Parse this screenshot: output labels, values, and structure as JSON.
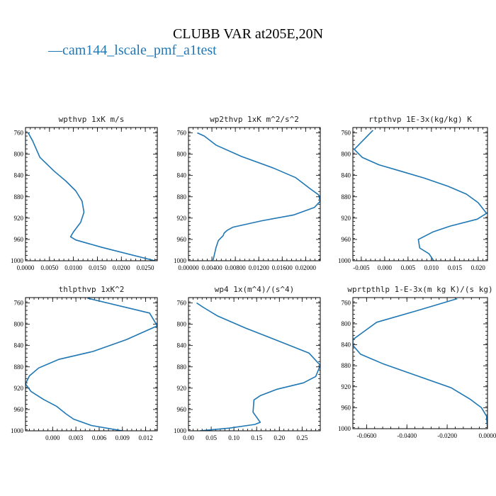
{
  "figure": {
    "title": "CLUBB VAR at205E,20N",
    "legend": {
      "symbol": "—",
      "label": "cam144_lscale_pmf_a1test",
      "color": "#1f77b4"
    }
  },
  "chart_data": [
    {
      "type": "line",
      "title": "wpthvp  1xK m/s",
      "xlim": [
        0.0,
        0.0275
      ],
      "xticks": [
        0.0,
        0.005,
        0.01,
        0.015,
        0.02,
        0.025
      ],
      "xtick_labels": [
        "0.0000",
        "0.0050",
        "0.0100",
        "0.0150",
        "0.0200",
        "0.0250"
      ],
      "ylim": [
        1000,
        750
      ],
      "yticks": [
        760,
        800,
        840,
        880,
        920,
        960,
        1000
      ],
      "series": [
        {
          "x": [
            0.0005,
            0.0015,
            0.003,
            0.006,
            0.0085,
            0.0105,
            0.0118,
            0.0122,
            0.0115,
            0.01,
            0.0094,
            0.0105,
            0.016,
            0.027
          ],
          "y": [
            759,
            775,
            806,
            832,
            851,
            869,
            888,
            909,
            928,
            946,
            955,
            961,
            975,
            1000
          ]
        }
      ]
    },
    {
      "type": "line",
      "title": "wp2thvp  1xK m^2/s^2",
      "xlim": [
        0.0,
        0.0225
      ],
      "xticks": [
        0.0,
        0.004,
        0.008,
        0.012,
        0.016,
        0.02
      ],
      "xtick_labels": [
        "0.00000",
        "0.00400",
        "0.00800",
        "0.01200",
        "0.01600",
        "0.02000"
      ],
      "ylim": [
        1000,
        750
      ],
      "yticks": [
        760,
        800,
        840,
        880,
        920,
        960,
        1000
      ],
      "series": [
        {
          "x": [
            0.0015,
            0.0027,
            0.0047,
            0.009,
            0.0145,
            0.0183,
            0.0208,
            0.0222,
            0.0225,
            0.0215,
            0.018,
            0.0125,
            0.0076,
            0.0066,
            0.0061,
            0.0059,
            0.0051,
            0.0047,
            0.0042
          ],
          "y": [
            760,
            766,
            783,
            804,
            826,
            844,
            865,
            876,
            888,
            900,
            914,
            925,
            937,
            943,
            948,
            953,
            962,
            975,
            999
          ]
        }
      ]
    },
    {
      "type": "line",
      "title": "rtpthvp  1E-3x(kg/kg) K",
      "xlim": [
        -0.0068,
        0.022
      ],
      "xticks": [
        -0.005,
        0.0,
        0.005,
        0.01,
        0.015,
        0.02
      ],
      "xtick_labels": [
        "-0.005",
        "0.000",
        "0.005",
        "0.010",
        "0.015",
        "0.020"
      ],
      "ylim": [
        1000,
        750
      ],
      "yticks": [
        760,
        800,
        840,
        880,
        920,
        960,
        1000
      ],
      "series": [
        {
          "x": [
            -0.0025,
            -0.0065,
            -0.0048,
            -0.0012,
            0.0035,
            0.0085,
            0.0135,
            0.0175,
            0.02,
            0.0218,
            0.0198,
            0.014,
            0.0103,
            0.0072,
            0.0075,
            0.0095,
            0.0105
          ],
          "y": [
            755,
            791,
            806,
            820,
            832,
            845,
            860,
            875,
            891,
            911,
            922,
            935,
            946,
            960,
            976,
            987,
            1000
          ]
        }
      ]
    },
    {
      "type": "line",
      "title": "thlpthvp  1xK^2",
      "xlim": [
        -0.0035,
        0.0135
      ],
      "xticks": [
        0.0,
        0.003,
        0.006,
        0.009,
        0.012
      ],
      "xtick_labels": [
        "0.000",
        "0.003",
        "0.006",
        "0.009",
        "0.012"
      ],
      "ylim": [
        1000,
        750
      ],
      "yticks": [
        760,
        800,
        840,
        880,
        920,
        960,
        1000
      ],
      "series": [
        {
          "x": [
            0.0045,
            0.0125,
            0.0135,
            0.0095,
            0.0052,
            0.0008,
            -0.0018,
            -0.003,
            -0.0035,
            -0.0028,
            -0.0012,
            0.0005,
            0.0017,
            0.0027,
            0.005,
            0.009
          ],
          "y": [
            751,
            779,
            803,
            829,
            851,
            866,
            882,
            897,
            912,
            926,
            941,
            954,
            968,
            978,
            990,
            1000
          ]
        }
      ]
    },
    {
      "type": "line",
      "title": "wp4  1x(m^4)/(s^4)",
      "xlim": [
        0.0,
        0.29
      ],
      "xticks": [
        0.0,
        0.05,
        0.1,
        0.15,
        0.2,
        0.25
      ],
      "xtick_labels": [
        "0.00",
        "0.05",
        "0.10",
        "0.15",
        "0.20",
        "0.25"
      ],
      "ylim": [
        1000,
        750
      ],
      "yticks": [
        760,
        800,
        840,
        880,
        920,
        960,
        1000
      ],
      "series": [
        {
          "x": [
            0.018,
            0.032,
            0.063,
            0.125,
            0.2,
            0.265,
            0.29,
            0.28,
            0.253,
            0.195,
            0.158,
            0.144,
            0.142,
            0.158,
            0.146,
            0.09,
            0.025
          ],
          "y": [
            760,
            768,
            784,
            807,
            832,
            854,
            877,
            898,
            910,
            922,
            934,
            942,
            965,
            984,
            988,
            995,
            1000
          ]
        }
      ]
    },
    {
      "type": "line",
      "title": "wprtpthlp  1-E-3x(m kg K)/(s kg)",
      "xlim": [
        -0.0668,
        0.0
      ],
      "xticks": [
        -0.06,
        -0.04,
        -0.02,
        0.0
      ],
      "xtick_labels": [
        "-0.0600",
        "-0.0400",
        "-0.0200",
        "0.0000"
      ],
      "ylim": [
        1000,
        750
      ],
      "yticks": [
        760,
        800,
        840,
        880,
        920,
        960,
        1000
      ],
      "series": [
        {
          "x": [
            -0.015,
            -0.035,
            -0.055,
            -0.0668,
            -0.0668,
            -0.063,
            -0.052,
            -0.035,
            -0.018,
            -0.0085,
            -0.003,
            -0.0005,
            0.0
          ],
          "y": [
            752,
            775,
            797,
            830,
            841,
            858,
            876,
            899,
            922,
            944,
            960,
            976,
            1000
          ]
        }
      ]
    }
  ]
}
